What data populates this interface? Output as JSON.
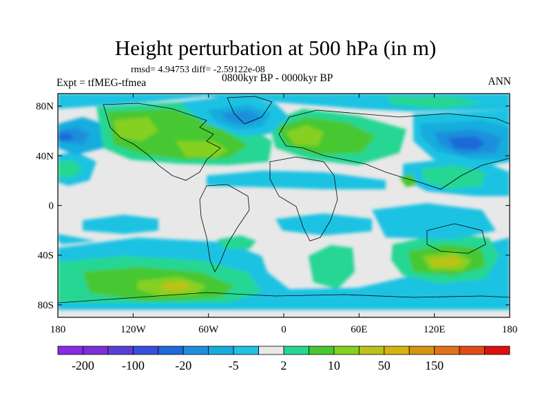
{
  "title": "Height perturbation at 500 hPa (in m)",
  "stats_line": "rmsd= 4.94753 diff= -2.59122e-08",
  "experiment": "Expt = tfMEG-tfmea",
  "period": "0800kyr BP - 0000kyr BP",
  "season": "ANN",
  "map": {
    "projection": "cylindrical equidistant",
    "lon_range": [
      -180,
      180
    ],
    "lat_range": [
      -90,
      90
    ],
    "lat_ticks": [
      {
        "lat": 80,
        "label": "80N"
      },
      {
        "lat": 40,
        "label": "40N"
      },
      {
        "lat": 0,
        "label": "0"
      },
      {
        "lat": -40,
        "label": "40S"
      },
      {
        "lat": -80,
        "label": "80S"
      }
    ],
    "lon_ticks": [
      {
        "lon": -180,
        "label": "180"
      },
      {
        "lon": -120,
        "label": "120W"
      },
      {
        "lon": -60,
        "label": "60W"
      },
      {
        "lon": 0,
        "label": "0"
      },
      {
        "lon": 60,
        "label": "60E"
      },
      {
        "lon": 120,
        "label": "120E"
      },
      {
        "lon": 180,
        "label": "180"
      }
    ]
  },
  "colorbar": {
    "colors": [
      "#8a2be2",
      "#7b2fd6",
      "#5a3ed4",
      "#3a4ed8",
      "#1e6ad8",
      "#1f8fdc",
      "#18acde",
      "#1fc2e2",
      "#e8e8e8",
      "#28d693",
      "#46c832",
      "#86d021",
      "#bcc217",
      "#d6b40e",
      "#d69410",
      "#e0721c",
      "#e04a17",
      "#dd0f0f"
    ],
    "labels": [
      {
        "text": "-200",
        "index": 1
      },
      {
        "text": "-100",
        "index": 3
      },
      {
        "text": "-20",
        "index": 5
      },
      {
        "text": "-5",
        "index": 7
      },
      {
        "text": "2",
        "index": 9
      },
      {
        "text": "10",
        "index": 11
      },
      {
        "text": "50",
        "index": 13
      },
      {
        "text": "150",
        "index": 15
      }
    ]
  }
}
